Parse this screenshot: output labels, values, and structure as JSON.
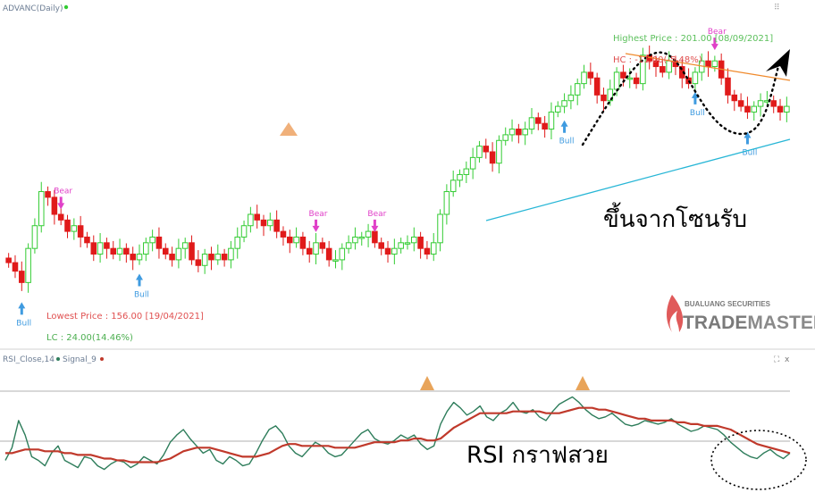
{
  "header": {
    "title": "ADVANC(Daily)",
    "rsi_title": "RSI_Close,14",
    "rsi_signal": "Signal_9",
    "resize_icon": "expand-icon",
    "close_icon_text": "x"
  },
  "colors": {
    "up": "#33cc33",
    "down": "#e01a1a",
    "rsi": "#2e7d5b",
    "signal": "#c0392b",
    "trend_up": "#27b6d6",
    "trend_down": "#f08a2c",
    "bull": "#3f9be0",
    "bear": "#e040c8",
    "lowest": "#e05050",
    "lc": "#4caf50",
    "highest": "#5cc05c",
    "hc": "#e05050"
  },
  "annotations": {
    "lowest_price": "Lowest Price : 156.00 [19/04/2021]",
    "lc": "LC : 24.00(14.46%)",
    "highest_price": "Highest Price : 201.00 [08/09/2021]",
    "hc": "HC : -11.00(-5.48%)",
    "bull": "Bull",
    "bear": "Bear",
    "support_text": "ขึ้นจากโซนรับ",
    "rsi_text": "RSI กราฟสวย"
  },
  "logo": {
    "line1": "BUALUANG SECURITIES",
    "line2a": "TRADE",
    "line2b": "MASTER"
  },
  "chart_data": [
    {
      "type": "candlestick",
      "title": "ADVANC(Daily)",
      "ylim": [
        150,
        205
      ],
      "closes": [
        163.5,
        162,
        160,
        166,
        170,
        176,
        175,
        172,
        171,
        169,
        170,
        168,
        167,
        165,
        167,
        166,
        165,
        166,
        165,
        164,
        165,
        167,
        168,
        166,
        165,
        164,
        166,
        167,
        164,
        163,
        165,
        164,
        165,
        164,
        166,
        168,
        170,
        172,
        171,
        170,
        171,
        169,
        168,
        167,
        168,
        166,
        165,
        167,
        166,
        164,
        164,
        166,
        167,
        168,
        168,
        169,
        167,
        166,
        165,
        166,
        167,
        167,
        168,
        166,
        165,
        167,
        172,
        176,
        178,
        179,
        180,
        182,
        184,
        183,
        181,
        185,
        186,
        187,
        186,
        187,
        189,
        188,
        187,
        190,
        191,
        192,
        193,
        195,
        197,
        196,
        193,
        192,
        194,
        197,
        196,
        196,
        195,
        200,
        199,
        198,
        197,
        199,
        198,
        196,
        195,
        197,
        199,
        198,
        199,
        196,
        193,
        192,
        191,
        190,
        191,
        192,
        192,
        191,
        190,
        191
      ],
      "bull_signals": [
        2,
        20,
        85,
        105,
        113
      ],
      "bear_signals": [
        8,
        47,
        56,
        108
      ]
    },
    {
      "type": "line",
      "title": "RSI_Close,14",
      "ylim": [
        20,
        90
      ],
      "series": [
        {
          "name": "RSI_Close,14",
          "values": [
            38,
            45,
            60,
            52,
            40,
            38,
            35,
            42,
            46,
            38,
            36,
            34,
            40,
            39,
            35,
            33,
            36,
            38,
            37,
            34,
            36,
            40,
            38,
            36,
            41,
            48,
            52,
            55,
            50,
            46,
            42,
            44,
            38,
            36,
            40,
            38,
            35,
            36,
            42,
            49,
            55,
            57,
            53,
            46,
            42,
            40,
            44,
            48,
            46,
            42,
            40,
            41,
            45,
            49,
            53,
            55,
            50,
            48,
            47,
            49,
            52,
            50,
            52,
            47,
            44,
            46,
            58,
            65,
            70,
            67,
            63,
            65,
            68,
            62,
            60,
            64,
            66,
            70,
            65,
            64,
            66,
            62,
            60,
            65,
            69,
            71,
            73,
            70,
            66,
            63,
            61,
            62,
            64,
            61,
            58,
            57,
            58,
            60,
            59,
            58,
            59,
            61,
            58,
            56,
            54,
            55,
            57,
            56,
            55,
            52,
            48,
            45,
            42,
            40,
            39,
            42,
            44,
            41,
            39,
            42
          ]
        },
        {
          "name": "Signal_9",
          "values": [
            42,
            42,
            43,
            44,
            44,
            44,
            43,
            43,
            43,
            42,
            42,
            41,
            41,
            41,
            40,
            39,
            39,
            38,
            38,
            37,
            37,
            37,
            37,
            37,
            38,
            39,
            41,
            43,
            44,
            45,
            45,
            45,
            44,
            43,
            42,
            41,
            40,
            40,
            40,
            41,
            42,
            44,
            46,
            47,
            47,
            46,
            46,
            46,
            46,
            46,
            45,
            45,
            45,
            45,
            46,
            47,
            48,
            48,
            48,
            48,
            49,
            49,
            50,
            50,
            49,
            49,
            50,
            53,
            56,
            58,
            60,
            62,
            64,
            64,
            64,
            64,
            64,
            65,
            65,
            65,
            65,
            65,
            64,
            64,
            64,
            65,
            66,
            67,
            67,
            67,
            66,
            66,
            65,
            64,
            63,
            62,
            61,
            61,
            60,
            60,
            60,
            60,
            59,
            59,
            58,
            58,
            57,
            57,
            57,
            56,
            55,
            53,
            51,
            49,
            47,
            46,
            45,
            44,
            43,
            42
          ]
        }
      ]
    }
  ]
}
